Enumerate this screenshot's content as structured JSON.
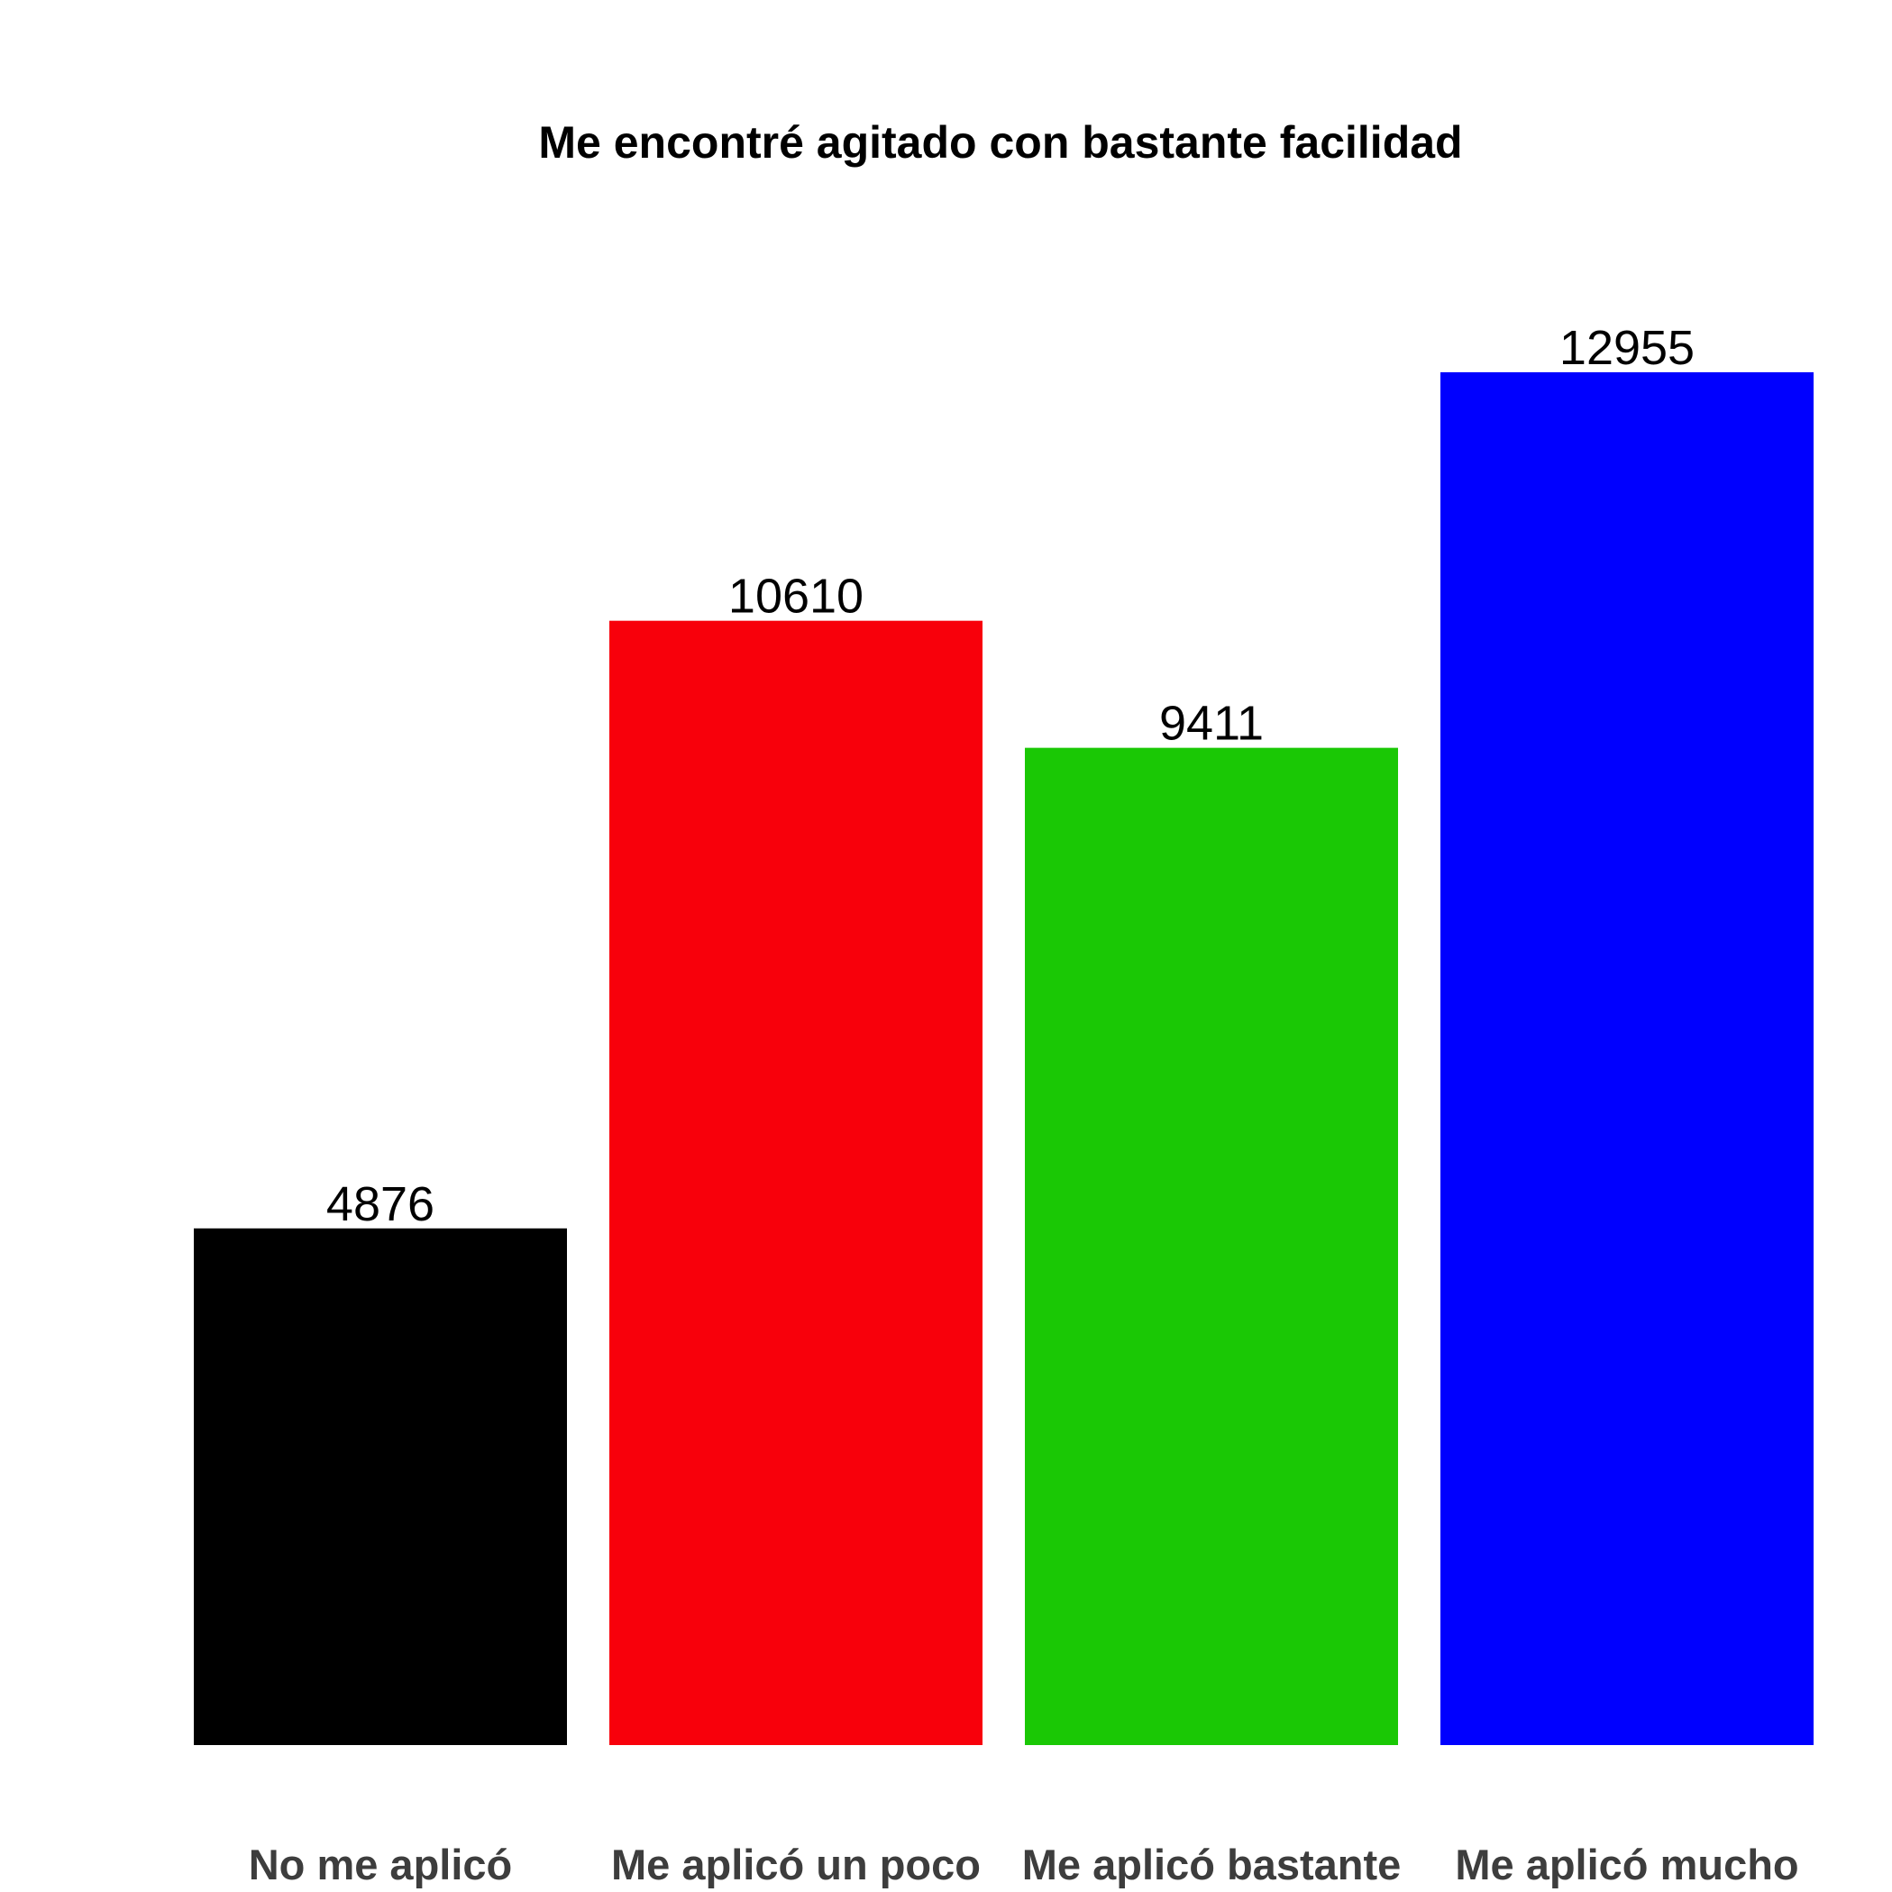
{
  "chart_data": {
    "type": "bar",
    "title": "Me encontré agitado con bastante facilidad",
    "xlabel": "",
    "ylabel": "",
    "categories": [
      "No me aplicó",
      "Me aplicó un poco",
      "Me aplicó bastante",
      "Me aplicó mucho"
    ],
    "values": [
      4876,
      10610,
      9411,
      12955
    ],
    "colors": [
      "#000000",
      "#f8000b",
      "#1ac805",
      "#0000ff"
    ],
    "ylim": [
      0,
      12955
    ],
    "grid": false,
    "legend": "none"
  }
}
